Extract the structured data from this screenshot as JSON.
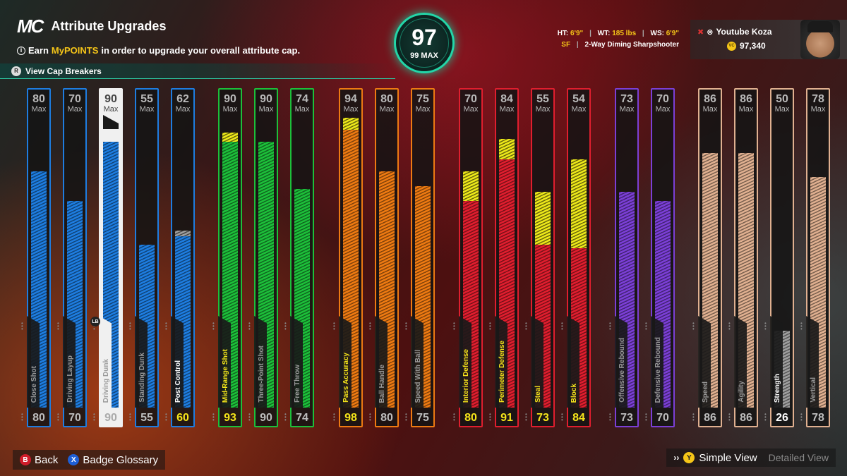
{
  "header": {
    "logo": "MC",
    "title": "Attribute Upgrades",
    "info_prefix": "Earn ",
    "info_highlight": "MyPOINTS",
    "info_suffix": " in order to upgrade your overall attribute cap.",
    "cap_breakers_label": "View Cap Breakers"
  },
  "overall": {
    "value": "97",
    "max_label": "99 MAX"
  },
  "bio": {
    "ht_label": "HT:",
    "ht": "6'9\"",
    "wt_label": "WT:",
    "wt": "185 lbs",
    "ws_label": "WS:",
    "ws": "6'9\"",
    "position": "SF",
    "archetype": "2-Way Diming Sharpshooter"
  },
  "profile": {
    "name": "Youtube Koza",
    "coins": "97,340",
    "coin_icon": "VC"
  },
  "max_label": "Max",
  "attributes": [
    {
      "name": "Close Shot",
      "cap": 80,
      "current": "80",
      "color": "#1e7de0",
      "boost": 0,
      "group": "finishing"
    },
    {
      "name": "Driving Layup",
      "cap": 70,
      "current": "70",
      "color": "#1e7de0",
      "boost": 0,
      "group": "finishing"
    },
    {
      "name": "Driving Dunk",
      "cap": 90,
      "current": "90",
      "color": "#1e7de0",
      "boost": 0,
      "group": "finishing",
      "selected": true
    },
    {
      "name": "Standing Dunk",
      "cap": 55,
      "current": "55",
      "color": "#1e7de0",
      "boost": 0,
      "group": "finishing"
    },
    {
      "name": "Post Control",
      "cap": 62,
      "current": "60",
      "color": "#1e7de0",
      "boost": 2,
      "boost_color": "#9e9e9e",
      "group": "finishing",
      "bright": true
    },
    {
      "name": "Mid-Range Shot",
      "cap": 90,
      "current": "93",
      "color": "#1dbf3a",
      "boost": 3,
      "group": "shooting",
      "bright": true
    },
    {
      "name": "Three-Point Shot",
      "cap": 90,
      "current": "90",
      "color": "#1dbf3a",
      "boost": 0,
      "group": "shooting"
    },
    {
      "name": "Free Throw",
      "cap": 74,
      "current": "74",
      "color": "#1dbf3a",
      "boost": 0,
      "group": "shooting"
    },
    {
      "name": "Pass Accuracy",
      "cap": 94,
      "current": "98",
      "color": "#ee7a12",
      "boost": 4,
      "group": "playmaking",
      "bright": true
    },
    {
      "name": "Ball Handle",
      "cap": 80,
      "current": "80",
      "color": "#ee7a12",
      "boost": 0,
      "group": "playmaking"
    },
    {
      "name": "Speed With Ball",
      "cap": 75,
      "current": "75",
      "color": "#ee7a12",
      "boost": 0,
      "group": "playmaking"
    },
    {
      "name": "Interior Defense",
      "cap": 70,
      "current": "80",
      "color": "#e01e2e",
      "boost": 10,
      "group": "defense",
      "bright": true
    },
    {
      "name": "Perimeter Defense",
      "cap": 84,
      "current": "91",
      "color": "#e01e2e",
      "boost": 7,
      "group": "defense",
      "bright": true
    },
    {
      "name": "Steal",
      "cap": 55,
      "current": "73",
      "color": "#e01e2e",
      "boost": 18,
      "group": "defense",
      "bright": true
    },
    {
      "name": "Block",
      "cap": 54,
      "current": "84",
      "color": "#e01e2e",
      "boost": 30,
      "group": "defense",
      "bright": true
    },
    {
      "name": "Offensive Rebound",
      "cap": 73,
      "current": "73",
      "color": "#7b3fd6",
      "boost": 0,
      "group": "rebounding"
    },
    {
      "name": "Defensive Rebound",
      "cap": 70,
      "current": "70",
      "color": "#7b3fd6",
      "boost": 0,
      "group": "rebounding"
    },
    {
      "name": "Speed",
      "cap": 86,
      "current": "86",
      "color": "#e0b090",
      "boost": 0,
      "group": "physicals"
    },
    {
      "name": "Agility",
      "cap": 86,
      "current": "86",
      "color": "#e0b090",
      "boost": 0,
      "group": "physicals"
    },
    {
      "name": "Strength",
      "cap": 50,
      "current": "26",
      "color": "#e0b090",
      "fill_color": "#9e9e9e",
      "boost": 0,
      "group": "physicals",
      "bright": true
    },
    {
      "name": "Vertical",
      "cap": 78,
      "current": "78",
      "color": "#e0b090",
      "boost": 0,
      "group": "physicals"
    }
  ],
  "footer": {
    "back_key": "B",
    "back_label": "Back",
    "glossary_key": "X",
    "glossary_label": "Badge Glossary",
    "view_key": "Y",
    "simple_view_label": "Simple View",
    "detailed_view_label": "Detailed View"
  },
  "selected_badge": "LB"
}
